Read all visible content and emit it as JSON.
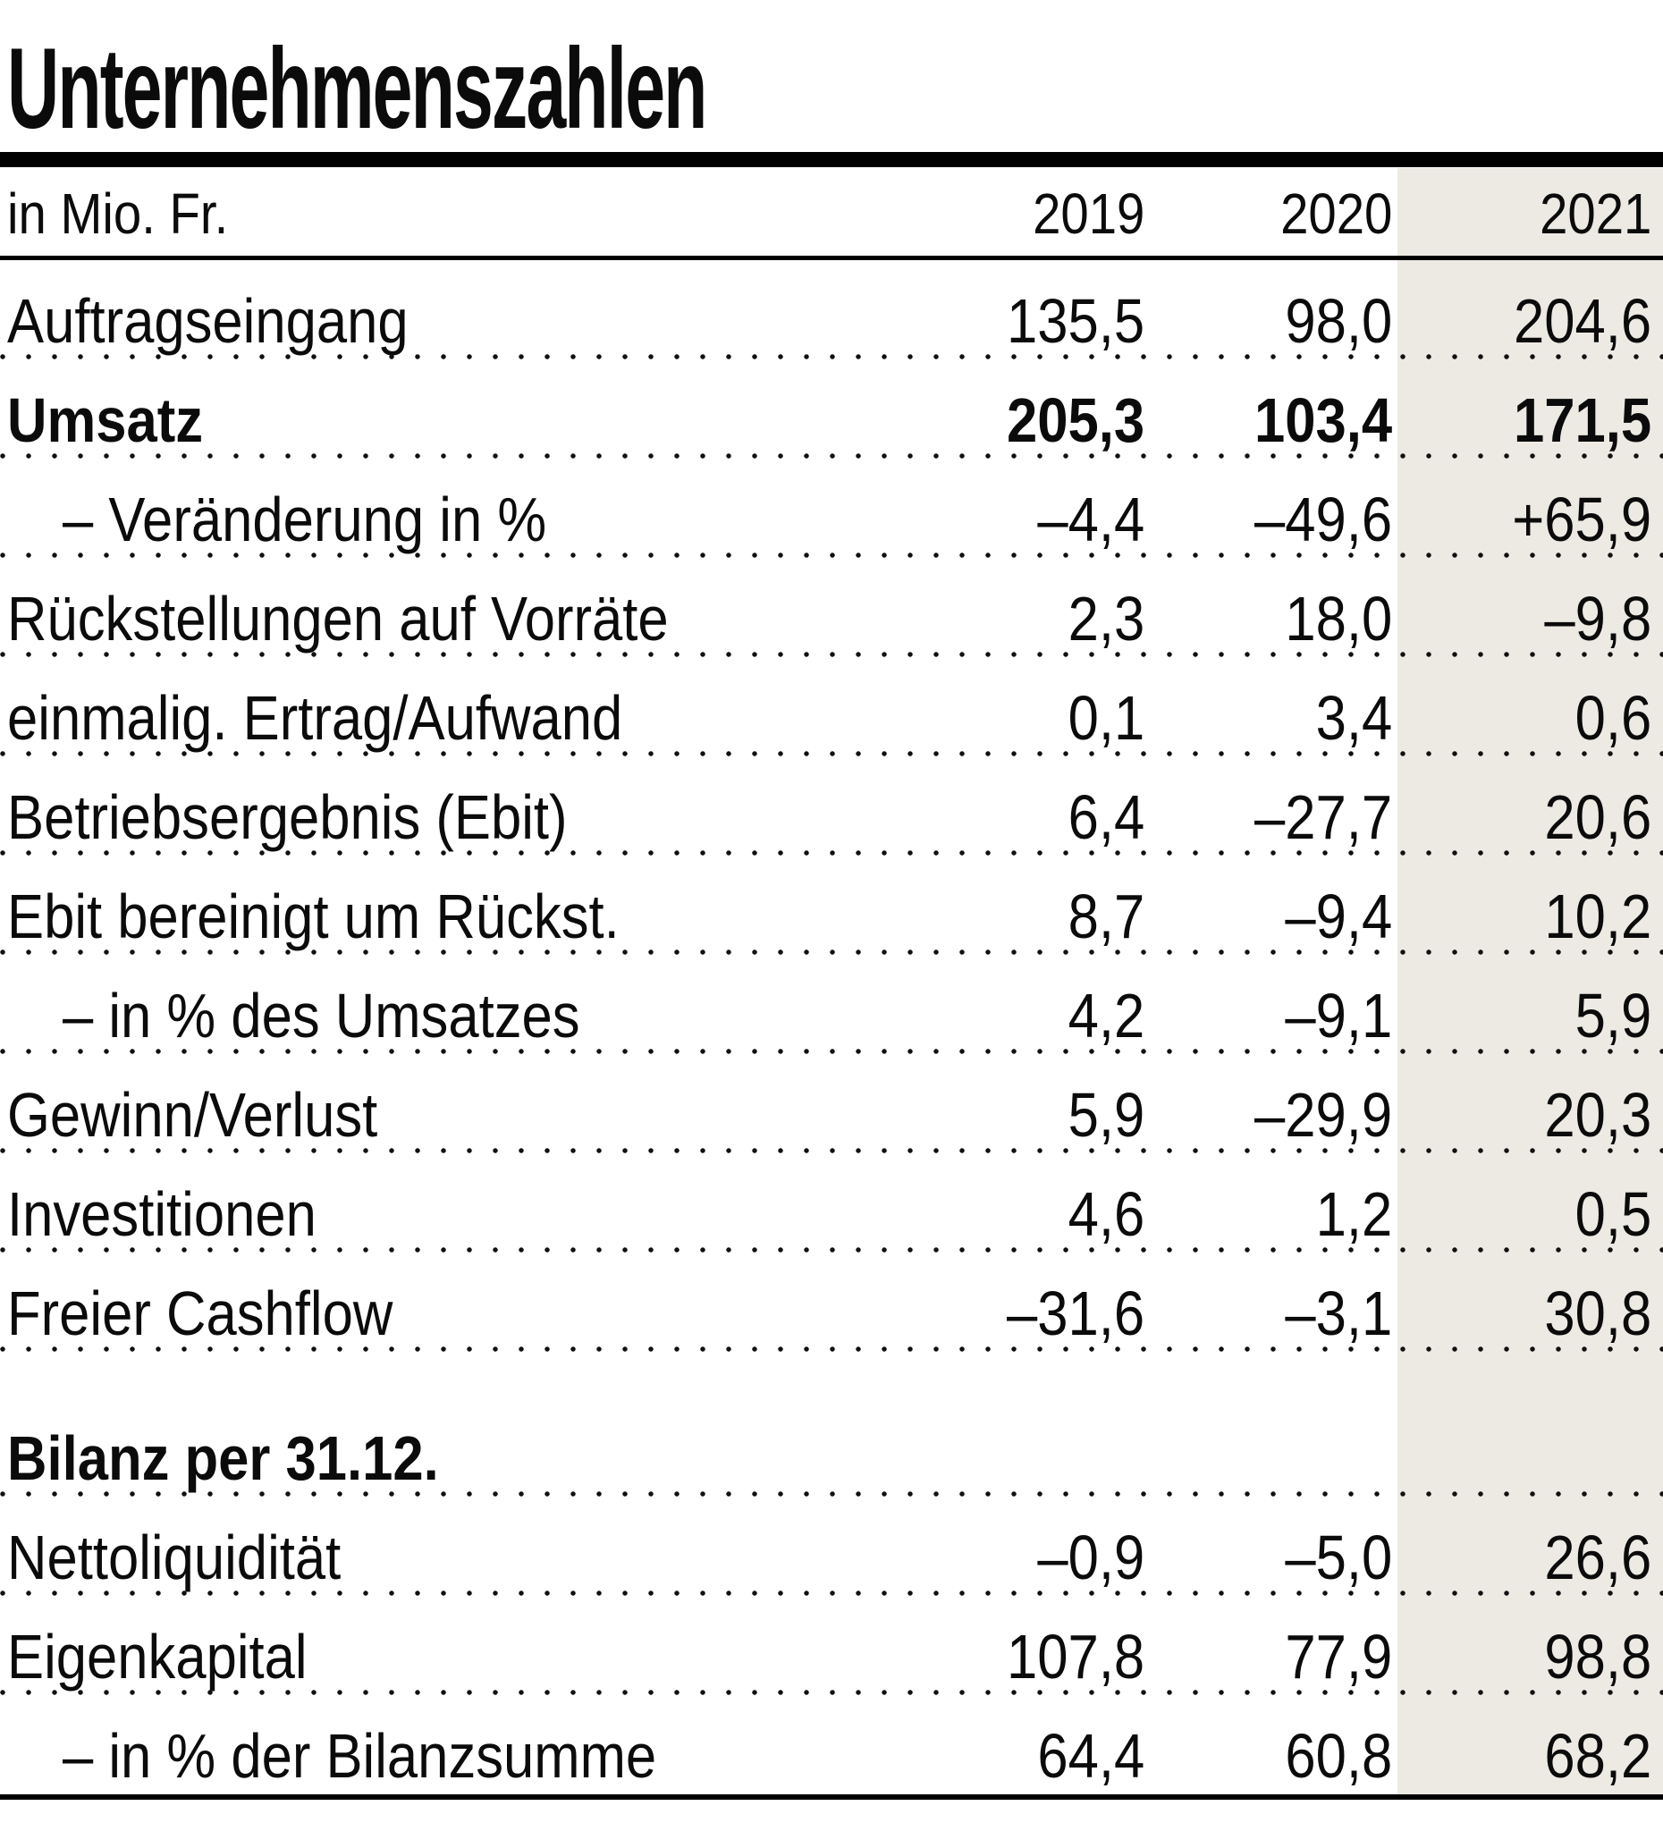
{
  "chart_data": {
    "type": "table",
    "title": "Unternehmenszahlen",
    "unit_label": "in Mio. Fr.",
    "columns": [
      "2019",
      "2020",
      "2021"
    ],
    "highlight_column": "2021",
    "rows": [
      {
        "label": "Auftragseingang",
        "bold": false,
        "indent": false,
        "section": false,
        "values": [
          "135,5",
          "98,0",
          "204,6"
        ]
      },
      {
        "label": "Umsatz",
        "bold": true,
        "indent": false,
        "section": false,
        "values": [
          "205,3",
          "103,4",
          "171,5"
        ]
      },
      {
        "label": "– Veränderung in %",
        "bold": false,
        "indent": true,
        "section": false,
        "values": [
          "–4,4",
          "–49,6",
          "+65,9"
        ]
      },
      {
        "label": "Rückstellungen auf Vorräte",
        "bold": false,
        "indent": false,
        "section": false,
        "values": [
          "2,3",
          "18,0",
          "–9,8"
        ]
      },
      {
        "label": "einmalig. Ertrag/Aufwand",
        "bold": false,
        "indent": false,
        "section": false,
        "values": [
          "0,1",
          "3,4",
          "0,6"
        ]
      },
      {
        "label": "Betriebsergebnis (Ebit)",
        "bold": false,
        "indent": false,
        "section": false,
        "values": [
          "6,4",
          "–27,7",
          "20,6"
        ]
      },
      {
        "label": "Ebit bereinigt um Rückst.",
        "bold": false,
        "indent": false,
        "section": false,
        "values": [
          "8,7",
          "–9,4",
          "10,2"
        ]
      },
      {
        "label": "– in % des Umsatzes",
        "bold": false,
        "indent": true,
        "section": false,
        "values": [
          "4,2",
          "–9,1",
          "5,9"
        ]
      },
      {
        "label": "Gewinn/Verlust",
        "bold": false,
        "indent": false,
        "section": false,
        "values": [
          "5,9",
          "–29,9",
          "20,3"
        ]
      },
      {
        "label": "Investitionen",
        "bold": false,
        "indent": false,
        "section": false,
        "values": [
          "4,6",
          "1,2",
          "0,5"
        ]
      },
      {
        "label": "Freier Cashflow",
        "bold": false,
        "indent": false,
        "section": false,
        "values": [
          "–31,6",
          "–3,1",
          "30,8"
        ]
      },
      {
        "label": "Bilanz per 31.12.",
        "bold": true,
        "indent": false,
        "section": true,
        "values": []
      },
      {
        "label": "Nettoliquidität",
        "bold": false,
        "indent": false,
        "section": false,
        "values": [
          "–0,9",
          "–5,0",
          "26,6"
        ]
      },
      {
        "label": "Eigenkapital",
        "bold": false,
        "indent": false,
        "section": false,
        "values": [
          "107,8",
          "77,9",
          "98,8"
        ]
      },
      {
        "label": "– in % der Bilanzsumme",
        "bold": false,
        "indent": true,
        "section": false,
        "values": [
          "64,4",
          "60,8",
          "68,2"
        ]
      }
    ]
  },
  "colors": {
    "highlight_bg": "#ECEAE3",
    "text": "#0B0B0B",
    "rule": "#000000"
  }
}
